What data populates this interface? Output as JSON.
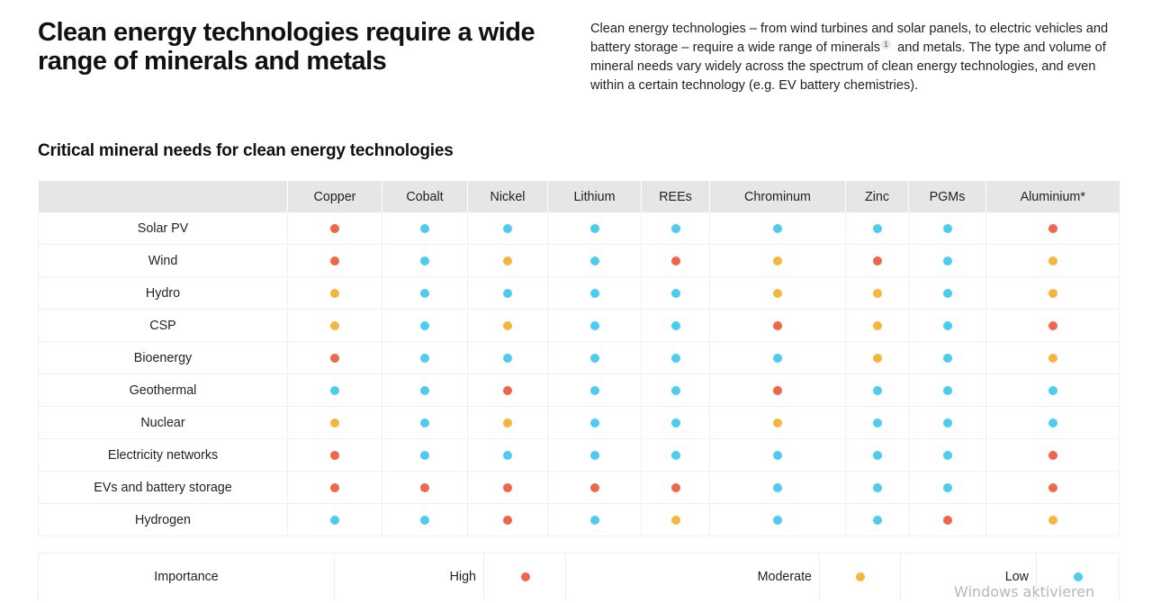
{
  "header": {
    "title": "Clean energy technologies require a wide range of minerals and metals",
    "intro_part1": "Clean energy technologies – from wind turbines and solar panels, to electric vehicles and battery storage – require a wide range of minerals",
    "footnote": "1",
    "intro_part2": " and metals. The type and volume of mineral needs vary widely across the spectrum of clean energy technologies, and even within a certain technology (e.g. EV battery chemistries)."
  },
  "section": {
    "title": "Critical mineral needs for clean energy technologies"
  },
  "colors": {
    "high": "#ef6649",
    "moderate": "#f5b53f",
    "low": "#4ccdf0"
  },
  "chart_data": {
    "type": "table",
    "title": "Critical mineral needs for clean energy technologies",
    "columns": [
      "Copper",
      "Cobalt",
      "Nickel",
      "Lithium",
      "REEs",
      "Chrominum",
      "Zinc",
      "PGMs",
      "Aluminium*"
    ],
    "rows": [
      {
        "label": "Solar PV",
        "values": [
          "high",
          "low",
          "low",
          "low",
          "low",
          "low",
          "low",
          "low",
          "high"
        ]
      },
      {
        "label": "Wind",
        "values": [
          "high",
          "low",
          "moderate",
          "low",
          "high",
          "moderate",
          "high",
          "low",
          "moderate"
        ]
      },
      {
        "label": "Hydro",
        "values": [
          "moderate",
          "low",
          "low",
          "low",
          "low",
          "moderate",
          "moderate",
          "low",
          "moderate"
        ]
      },
      {
        "label": "CSP",
        "values": [
          "moderate",
          "low",
          "moderate",
          "low",
          "low",
          "high",
          "moderate",
          "low",
          "high"
        ]
      },
      {
        "label": "Bioenergy",
        "values": [
          "high",
          "low",
          "low",
          "low",
          "low",
          "low",
          "moderate",
          "low",
          "moderate"
        ]
      },
      {
        "label": "Geothermal",
        "values": [
          "low",
          "low",
          "high",
          "low",
          "low",
          "high",
          "low",
          "low",
          "low"
        ]
      },
      {
        "label": "Nuclear",
        "values": [
          "moderate",
          "low",
          "moderate",
          "low",
          "low",
          "moderate",
          "low",
          "low",
          "low"
        ]
      },
      {
        "label": "Electricity networks",
        "values": [
          "high",
          "low",
          "low",
          "low",
          "low",
          "low",
          "low",
          "low",
          "high"
        ]
      },
      {
        "label": "EVs and battery storage",
        "values": [
          "high",
          "high",
          "high",
          "high",
          "high",
          "low",
          "low",
          "low",
          "high"
        ]
      },
      {
        "label": "Hydrogen",
        "values": [
          "low",
          "low",
          "high",
          "low",
          "moderate",
          "low",
          "low",
          "high",
          "moderate"
        ]
      }
    ],
    "legend": {
      "title": "Importance",
      "items": [
        {
          "key": "high",
          "label": "High"
        },
        {
          "key": "moderate",
          "label": "Moderate"
        },
        {
          "key": "low",
          "label": "Low"
        }
      ]
    }
  },
  "os_overlay": {
    "watermark": "Windows aktivieren"
  }
}
